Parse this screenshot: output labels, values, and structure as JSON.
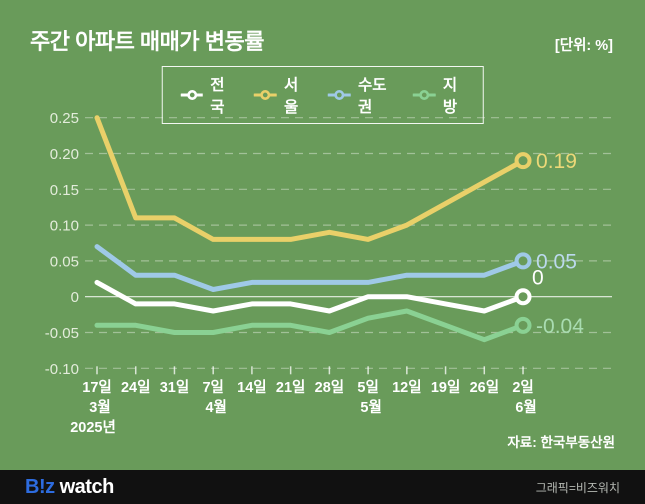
{
  "colors": {
    "background": "#699b5a",
    "footer_background": "#111111",
    "logo_blue": "#2d6cdf",
    "grid_line": "rgba(255,255,255,0.38)",
    "zero_line": "rgba(255,255,255,0.85)",
    "axis_text": "#e3ecdb"
  },
  "header": {
    "title": "주간 아파트 매매가 변동률",
    "unit": "[단위: %]"
  },
  "legend": {
    "items": [
      {
        "label": "전국",
        "color": "#ffffff"
      },
      {
        "label": "서울",
        "color": "#e9d069"
      },
      {
        "label": "수도권",
        "color": "#9fc9e7"
      },
      {
        "label": "지방",
        "color": "#8ad193"
      }
    ]
  },
  "chart_data": {
    "type": "line",
    "title": "주간 아파트 매매가 변동률",
    "unit": "%",
    "x_day_labels": [
      "17일",
      "24일",
      "31일",
      "7일",
      "14일",
      "21일",
      "28일",
      "5일",
      "12일",
      "19일",
      "26일",
      "2일"
    ],
    "x_month_labels": [
      {
        "index": 0,
        "label": "3월"
      },
      {
        "index": 3,
        "label": "4월"
      },
      {
        "index": 7,
        "label": "5월"
      },
      {
        "index": 11,
        "label": "6월"
      }
    ],
    "year_label": "2025년",
    "ylim": [
      -0.1,
      0.25
    ],
    "grid": "dashed-horizontal",
    "legend_position": "top",
    "y_ticks": [
      {
        "label": "0.25",
        "value": 0.25
      },
      {
        "label": "0.20",
        "value": 0.2
      },
      {
        "label": "0.15",
        "value": 0.15
      },
      {
        "label": "0.10",
        "value": 0.1
      },
      {
        "label": "0.05",
        "value": 0.05
      },
      {
        "label": "0",
        "value": 0
      },
      {
        "label": "-0.05",
        "value": -0.05
      },
      {
        "label": "-0.10",
        "value": -0.1
      }
    ],
    "series": [
      {
        "name": "서울",
        "key": "seoul",
        "color": "#e9d069",
        "label_color": "#ecd878",
        "end_label": "0.19",
        "end_label_pos": "right",
        "values": [
          0.25,
          0.11,
          0.11,
          0.08,
          0.08,
          0.08,
          0.09,
          0.08,
          0.1,
          0.13,
          0.16,
          0.19
        ]
      },
      {
        "name": "수도권",
        "key": "metropolitan",
        "color": "#9fc9e7",
        "label_color": "#bcd9ee",
        "end_label": "0.05",
        "end_label_pos": "right",
        "values": [
          0.07,
          0.03,
          0.03,
          0.01,
          0.02,
          0.02,
          0.02,
          0.02,
          0.03,
          0.03,
          0.03,
          0.05
        ]
      },
      {
        "name": "전국",
        "key": "nationwide",
        "color": "#ffffff",
        "label_color": "#ffffff",
        "end_label": "0",
        "end_label_pos": "above",
        "values": [
          0.02,
          -0.01,
          -0.01,
          -0.02,
          -0.01,
          -0.01,
          -0.02,
          0.0,
          0.0,
          -0.01,
          -0.02,
          0.0
        ]
      },
      {
        "name": "지방",
        "key": "regional",
        "color": "#8ad193",
        "label_color": "#a9dcb1",
        "end_label": "-0.04",
        "end_label_pos": "right",
        "values": [
          -0.04,
          -0.04,
          -0.05,
          -0.05,
          -0.04,
          -0.04,
          -0.05,
          -0.03,
          -0.02,
          -0.04,
          -0.06,
          -0.04
        ]
      }
    ]
  },
  "source": "자료: 한국부동산원",
  "footer": {
    "logo_biz": "B!z",
    "logo_watch": "watch",
    "credit": "그래픽=비즈워치"
  }
}
